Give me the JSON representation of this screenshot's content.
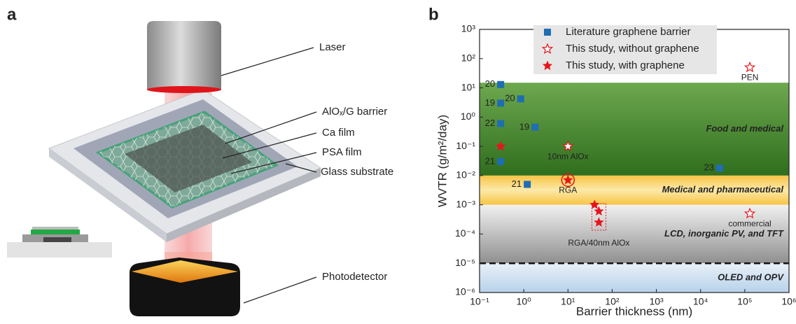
{
  "panel_labels": [
    "a",
    "b"
  ],
  "diagram_labels": [
    "Laser",
    "AlOₓ/G barrier",
    "Ca film",
    "PSA film",
    "Glass substrate",
    "Photodetector"
  ],
  "chart_data": {
    "type": "scatter",
    "log_x": true,
    "log_y": true,
    "x_label": "Barrier thickness (nm)",
    "y_label": "WVTR (g/m²/day)",
    "xlim": [
      0.1,
      1000000
    ],
    "ylim": [
      1e-06,
      1000
    ],
    "xticks": [
      {
        "value": 0.1,
        "label": "10⁻¹"
      },
      {
        "value": 1,
        "label": "10⁰"
      },
      {
        "value": 10,
        "label": "10¹"
      },
      {
        "value": 100,
        "label": "10²"
      },
      {
        "value": 1000,
        "label": "10³"
      },
      {
        "value": 10000,
        "label": "10⁴"
      },
      {
        "value": 100000,
        "label": "10⁵"
      },
      {
        "value": 1000000,
        "label": "10⁶"
      }
    ],
    "yticks": [
      {
        "value": 1e-06,
        "label": "10⁻⁶"
      },
      {
        "value": 1e-05,
        "label": "10⁻⁵"
      },
      {
        "value": 0.0001,
        "label": "10⁻⁴"
      },
      {
        "value": 0.001,
        "label": "10⁻³"
      },
      {
        "value": 0.01,
        "label": "10⁻²"
      },
      {
        "value": 0.1,
        "label": "10⁻¹"
      },
      {
        "value": 1,
        "label": "10⁰"
      },
      {
        "value": 10,
        "label": "10¹"
      },
      {
        "value": 100,
        "label": "10²"
      },
      {
        "value": 1000,
        "label": "10³"
      }
    ],
    "regions": [
      {
        "label": "Food and medical",
        "range": [
          0.01,
          15
        ],
        "color": "#4e8a35"
      },
      {
        "label": "Medical and pharmaceutical",
        "range": [
          0.001,
          0.01
        ],
        "color": "#f6c445"
      },
      {
        "label": "LCD, inorganic PV, and TFT",
        "range": [
          1e-05,
          0.001
        ],
        "color": "#a8a8a8"
      },
      {
        "label": "OLED and OPV",
        "range": [
          1e-06,
          1e-05
        ],
        "color": "#c9dcef"
      }
    ],
    "threshold": 1e-05,
    "series": [
      {
        "name": "Literature graphene barrier",
        "marker": "square",
        "color": "#1f6db3",
        "x": [
          0.3,
          0.3,
          0.3,
          0.3,
          0.85,
          1.8,
          1.2,
          27000
        ],
        "values": [
          13,
          3,
          0.6,
          0.03,
          4.2,
          0.45,
          0.005,
          0.018
        ],
        "point_labels": [
          "20",
          "19",
          "22",
          "21",
          "20",
          "19",
          "21",
          "23"
        ]
      },
      {
        "name": "This study, without graphene",
        "marker": "hollow-star",
        "color": "#e8141b",
        "x": [
          10,
          130000,
          130000
        ],
        "values": [
          0.1,
          50,
          0.0005
        ],
        "point_labels": [
          "10nm AlOx",
          "PEN",
          "commercial"
        ]
      },
      {
        "name": "This study, with graphene",
        "marker": "star",
        "color": "#e8141b",
        "x": [
          0.3,
          10,
          40,
          50,
          50
        ],
        "values": [
          0.1,
          0.007,
          0.001,
          0.0006,
          0.00025
        ],
        "point_labels": [
          null,
          "RGA",
          null,
          null,
          "RGA/40nm AlOx"
        ]
      }
    ]
  }
}
